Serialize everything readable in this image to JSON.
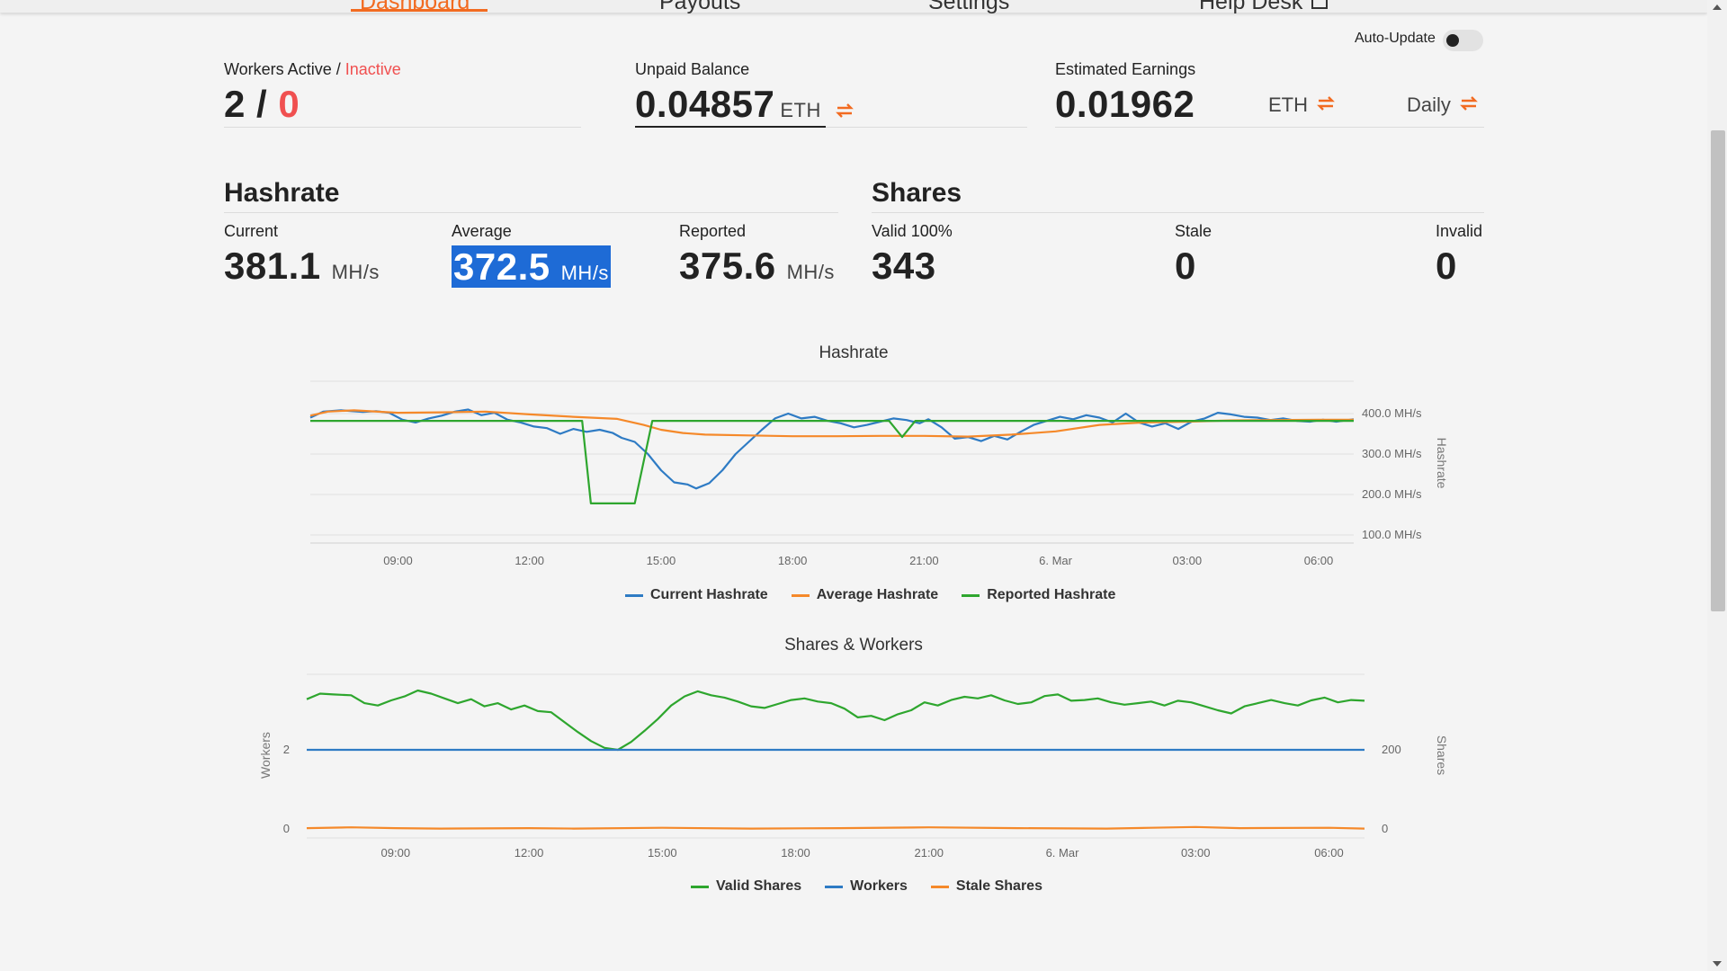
{
  "nav": {
    "tabs": [
      {
        "label": "Dashboard",
        "active": true
      },
      {
        "label": "Payouts"
      },
      {
        "label": "Settings"
      },
      {
        "label": "Help Desk"
      }
    ]
  },
  "auto_update": {
    "label": "Auto-Update",
    "enabled": false
  },
  "workers": {
    "label_active": "Workers Active",
    "label_sep": " / ",
    "label_inactive": "Inactive",
    "active": "2",
    "sep": " / ",
    "inactive": "0"
  },
  "unpaid": {
    "label": "Unpaid Balance",
    "value": "0.04857",
    "unit": "ETH"
  },
  "earnings": {
    "label": "Estimated Earnings",
    "value": "0.01962",
    "unit": "ETH",
    "period": "Daily"
  },
  "hashrate": {
    "title": "Hashrate",
    "current": {
      "label": "Current",
      "value": "381.1",
      "unit": "MH/s"
    },
    "average": {
      "label": "Average",
      "value": "372.5",
      "unit": "MH/s"
    },
    "reported": {
      "label": "Reported",
      "value": "375.6",
      "unit": "MH/s"
    }
  },
  "shares": {
    "title": "Shares",
    "valid": {
      "label": "Valid 100%",
      "value": "343"
    },
    "stale": {
      "label": "Stale",
      "value": "0"
    },
    "invalid": {
      "label": "Invalid",
      "value": "0"
    }
  },
  "colors": {
    "accent": "#f26b21",
    "blue": "#2e7bc4",
    "orange": "#f5892a",
    "green": "#2ea62e",
    "red": "#f05050",
    "highlight": "#1e6bd6"
  },
  "chart_data": [
    {
      "type": "line",
      "title": "Hashrate",
      "x_ticks": [
        "09:00",
        "12:00",
        "15:00",
        "18:00",
        "21:00",
        "6. Mar",
        "03:00",
        "06:00"
      ],
      "y_ticks": [
        "100.0 MH/s",
        "200.0 MH/s",
        "300.0 MH/s",
        "400.0 MH/s"
      ],
      "ylabel": "Hashrate",
      "ylim": [
        80,
        480
      ],
      "x_range_hours": [
        0,
        23.8
      ],
      "series": [
        {
          "name": "Current Hashrate",
          "color": "#2e7bc4",
          "values": [
            [
              0,
              390
            ],
            [
              0.3,
              405
            ],
            [
              0.7,
              408
            ],
            [
              1.2,
              404
            ],
            [
              1.5,
              406
            ],
            [
              1.8,
              402
            ],
            [
              2.1,
              385
            ],
            [
              2.4,
              378
            ],
            [
              2.7,
              388
            ],
            [
              3,
              395
            ],
            [
              3.3,
              405
            ],
            [
              3.6,
              410
            ],
            [
              3.9,
              396
            ],
            [
              4.2,
              402
            ],
            [
              4.5,
              385
            ],
            [
              4.8,
              378
            ],
            [
              5.1,
              368
            ],
            [
              5.4,
              364
            ],
            [
              5.7,
              350
            ],
            [
              6,
              362
            ],
            [
              6.3,
              355
            ],
            [
              6.6,
              360
            ],
            [
              6.9,
              352
            ],
            [
              7.1,
              340
            ],
            [
              7.4,
              330
            ],
            [
              7.7,
              300
            ],
            [
              8,
              260
            ],
            [
              8.3,
              230
            ],
            [
              8.6,
              225
            ],
            [
              8.8,
              215
            ],
            [
              9.1,
              228
            ],
            [
              9.4,
              260
            ],
            [
              9.7,
              300
            ],
            [
              10,
              330
            ],
            [
              10.3,
              360
            ],
            [
              10.6,
              388
            ],
            [
              10.9,
              400
            ],
            [
              11.2,
              388
            ],
            [
              11.5,
              392
            ],
            [
              11.8,
              382
            ],
            [
              12.1,
              376
            ],
            [
              12.4,
              366
            ],
            [
              12.7,
              372
            ],
            [
              13,
              380
            ],
            [
              13.3,
              388
            ],
            [
              13.6,
              384
            ],
            [
              13.9,
              376
            ],
            [
              14.1,
              386
            ],
            [
              14.4,
              366
            ],
            [
              14.7,
              338
            ],
            [
              15,
              342
            ],
            [
              15.3,
              332
            ],
            [
              15.6,
              345
            ],
            [
              15.9,
              336
            ],
            [
              16.2,
              355
            ],
            [
              16.5,
              372
            ],
            [
              16.8,
              382
            ],
            [
              17.1,
              392
            ],
            [
              17.4,
              386
            ],
            [
              17.7,
              396
            ],
            [
              18,
              390
            ],
            [
              18.3,
              378
            ],
            [
              18.6,
              400
            ],
            [
              18.9,
              378
            ],
            [
              19.2,
              368
            ],
            [
              19.5,
              376
            ],
            [
              19.8,
              362
            ],
            [
              20.1,
              380
            ],
            [
              20.4,
              388
            ],
            [
              20.7,
              402
            ],
            [
              21,
              398
            ],
            [
              21.3,
              392
            ],
            [
              21.6,
              390
            ],
            [
              21.9,
              384
            ],
            [
              22.2,
              388
            ],
            [
              22.5,
              382
            ],
            [
              22.8,
              380
            ],
            [
              23.1,
              385
            ],
            [
              23.4,
              380
            ],
            [
              23.8,
              386
            ]
          ]
        },
        {
          "name": "Average Hashrate",
          "color": "#f5892a",
          "values": [
            [
              0,
              395
            ],
            [
              0.4,
              405
            ],
            [
              1,
              408
            ],
            [
              2,
              402
            ],
            [
              3,
              403
            ],
            [
              4,
              405
            ],
            [
              5,
              398
            ],
            [
              6,
              392
            ],
            [
              7,
              387
            ],
            [
              7.6,
              372
            ],
            [
              8,
              360
            ],
            [
              8.5,
              352
            ],
            [
              9,
              348
            ],
            [
              10,
              346
            ],
            [
              11,
              344
            ],
            [
              12,
              344
            ],
            [
              13,
              345
            ],
            [
              14,
              345
            ],
            [
              15,
              343
            ],
            [
              16,
              348
            ],
            [
              17,
              356
            ],
            [
              18,
              372
            ],
            [
              19,
              378
            ],
            [
              20,
              380
            ],
            [
              21,
              383
            ],
            [
              22,
              384
            ],
            [
              23,
              385
            ],
            [
              23.8,
              385
            ]
          ]
        },
        {
          "name": "Reported Hashrate",
          "color": "#2ea62e",
          "values": [
            [
              0,
              382
            ],
            [
              6.2,
              382
            ],
            [
              6.4,
              178
            ],
            [
              7.4,
              178
            ],
            [
              7.8,
              382
            ],
            [
              13.2,
              382
            ],
            [
              13.5,
              342
            ],
            [
              13.8,
              382
            ],
            [
              23.8,
              382
            ]
          ]
        }
      ]
    },
    {
      "type": "line",
      "title": "Shares & Workers",
      "x_ticks": [
        "09:00",
        "12:00",
        "15:00",
        "18:00",
        "21:00",
        "6. Mar",
        "03:00",
        "06:00"
      ],
      "y_left_ticks": [
        "0",
        "2"
      ],
      "y_right_ticks": [
        "0",
        "200"
      ],
      "ylabel_left": "Workers",
      "ylabel_right": "Shares",
      "series": [
        {
          "name": "Valid Shares",
          "color": "#2ea62e",
          "axis": "right",
          "values": [
            [
              0,
              328
            ],
            [
              0.3,
              342
            ],
            [
              0.6,
              340
            ],
            [
              1,
              338
            ],
            [
              1.3,
              318
            ],
            [
              1.6,
              312
            ],
            [
              1.9,
              325
            ],
            [
              2.2,
              335
            ],
            [
              2.5,
              350
            ],
            [
              2.8,
              342
            ],
            [
              3.1,
              330
            ],
            [
              3.4,
              318
            ],
            [
              3.7,
              328
            ],
            [
              4,
              310
            ],
            [
              4.3,
              318
            ],
            [
              4.6,
              302
            ],
            [
              4.9,
              312
            ],
            [
              5.2,
              298
            ],
            [
              5.5,
              295
            ],
            [
              5.8,
              270
            ],
            [
              6.1,
              245
            ],
            [
              6.4,
              222
            ],
            [
              6.7,
              205
            ],
            [
              7,
              200
            ],
            [
              7.3,
              220
            ],
            [
              7.6,
              248
            ],
            [
              7.9,
              278
            ],
            [
              8.2,
              312
            ],
            [
              8.5,
              335
            ],
            [
              8.8,
              348
            ],
            [
              9.1,
              338
            ],
            [
              9.4,
              332
            ],
            [
              9.7,
              322
            ],
            [
              10,
              310
            ],
            [
              10.3,
              306
            ],
            [
              10.6,
              316
            ],
            [
              10.9,
              326
            ],
            [
              11.2,
              330
            ],
            [
              11.5,
              322
            ],
            [
              11.8,
              318
            ],
            [
              12.1,
              304
            ],
            [
              12.4,
              282
            ],
            [
              12.7,
              286
            ],
            [
              13,
              275
            ],
            [
              13.3,
              290
            ],
            [
              13.6,
              300
            ],
            [
              13.9,
              320
            ],
            [
              14.2,
              312
            ],
            [
              14.5,
              326
            ],
            [
              14.8,
              334
            ],
            [
              15.1,
              330
            ],
            [
              15.4,
              338
            ],
            [
              15.7,
              325
            ],
            [
              16,
              316
            ],
            [
              16.3,
              320
            ],
            [
              16.6,
              336
            ],
            [
              16.9,
              340
            ],
            [
              17.2,
              324
            ],
            [
              17.5,
              326
            ],
            [
              17.8,
              330
            ],
            [
              18.1,
              320
            ],
            [
              18.4,
              314
            ],
            [
              18.7,
              318
            ],
            [
              19,
              322
            ],
            [
              19.3,
              312
            ],
            [
              19.6,
              324
            ],
            [
              19.9,
              320
            ],
            [
              20.2,
              310
            ],
            [
              20.5,
              300
            ],
            [
              20.8,
              292
            ],
            [
              21.1,
              310
            ],
            [
              21.4,
              318
            ],
            [
              21.7,
              326
            ],
            [
              22,
              318
            ],
            [
              22.3,
              312
            ],
            [
              22.6,
              325
            ],
            [
              22.9,
              332
            ],
            [
              23.2,
              320
            ],
            [
              23.5,
              326
            ],
            [
              23.8,
              324
            ]
          ]
        },
        {
          "name": "Workers",
          "color": "#2e7bc4",
          "axis": "left",
          "values": [
            [
              0,
              2
            ],
            [
              23.8,
              2
            ]
          ]
        },
        {
          "name": "Stale Shares",
          "color": "#f5892a",
          "axis": "right",
          "values": [
            [
              0,
              2
            ],
            [
              1,
              4
            ],
            [
              2,
              2
            ],
            [
              3,
              1
            ],
            [
              5,
              2
            ],
            [
              6,
              1
            ],
            [
              8,
              3
            ],
            [
              10,
              1
            ],
            [
              12,
              2
            ],
            [
              14,
              4
            ],
            [
              16,
              2
            ],
            [
              18,
              1
            ],
            [
              19,
              3
            ],
            [
              20,
              5
            ],
            [
              21,
              2
            ],
            [
              23,
              3
            ],
            [
              23.8,
              1
            ]
          ]
        }
      ]
    }
  ]
}
